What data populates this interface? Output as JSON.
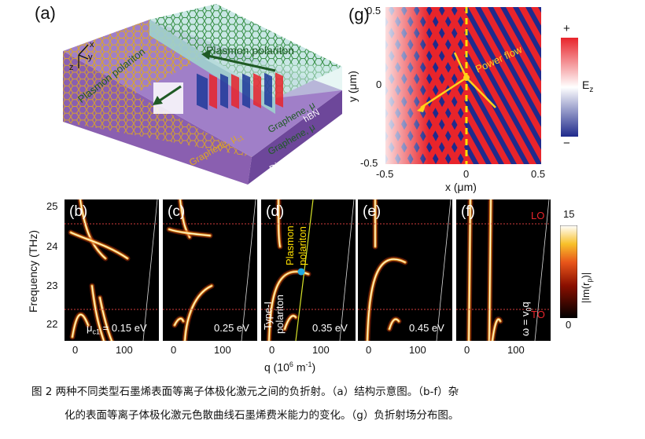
{
  "panel_a": {
    "label": "(a)",
    "axes": {
      "x": "x",
      "y": "y",
      "z": "z"
    },
    "plasmon_left": "Plasmon polariton",
    "plasmon_top": "Plasmon polariton",
    "graphene_left": "Graphene, μ",
    "graphene_left_sub": "c1",
    "graphene_right_top": "Graphene, μ",
    "hbn": "hBN",
    "graphene_right": "Graphene, μ",
    "diamond": "Diamond"
  },
  "panel_g": {
    "label": "(g)",
    "ylabel": "y (μm)",
    "xlabel": "x (μm)",
    "yticks": [
      "0.5",
      "0",
      "-0.5"
    ],
    "xticks": [
      "-0.5",
      "0",
      "0.5"
    ],
    "power_flow": "Power flow",
    "colorbar_plus": "+",
    "colorbar_minus": "−",
    "colorbar_label": "E",
    "colorbar_label_sub": "z",
    "colors": {
      "red": "#e8242b",
      "blue": "#1f2a8c",
      "dash": "#ffe000",
      "arrow": "#ffd21a"
    }
  },
  "dispersion": {
    "ylabel": "Frequency (THz)",
    "yticks": [
      "25",
      "24",
      "23",
      "22"
    ],
    "xticks": [
      "0",
      "100"
    ],
    "xlabel": "q (10",
    "xlabel_sup": "6",
    "xlabel_rest": " m",
    "xlabel_sup2": "-1",
    "xlabel_end": ")",
    "LO": "LO",
    "TO": "TO",
    "light_line": "ω = v",
    "light_line_sub": "0",
    "light_line_q": "q",
    "colorbar_max": "15",
    "colorbar_min": "0",
    "colorbar_label": "|Im(r",
    "colorbar_label_sub": "p",
    "colorbar_label_end": ")|",
    "marker_color": "#22a9e0",
    "panels": [
      {
        "label": "(b)",
        "mu": "μ",
        "mu_sub": "c1",
        "value": " = 0.15 eV"
      },
      {
        "label": "(c)",
        "value": "0.25 eV"
      },
      {
        "label": "(d)",
        "value": "0.35 eV",
        "plasmon": "Plasmon",
        "polariton": "polariton",
        "type1": "Type-I",
        "type1_polariton": "polariton"
      },
      {
        "label": "(e)",
        "value": "0.45 eV"
      },
      {
        "label": "(f)",
        "value": ""
      }
    ]
  },
  "caption": {
    "line1": "图 2  两种不同类型石墨烯表面等离子体极化激元之间的负折射。（a）结构示意图。（b-f）杂",
    "line2": "化的表面等离子体极化激元色散曲线石墨烯费米能力的变化。（g）负折射场分布图。"
  }
}
